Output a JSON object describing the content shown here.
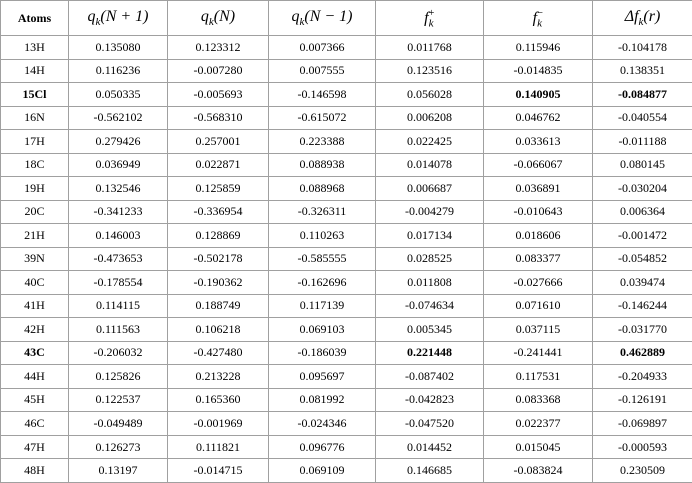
{
  "table": {
    "header": [
      {
        "base": "Atoms"
      },
      {
        "base": "q",
        "sub": "k",
        "rest": "(N + 1)"
      },
      {
        "base": "q",
        "sub": "k",
        "rest": "(N)"
      },
      {
        "base": "q",
        "sub": "k",
        "rest": "(N − 1)"
      },
      {
        "base": "f",
        "sub": "k",
        "sup": "+"
      },
      {
        "base": "f",
        "sub": "k",
        "sup": "−"
      },
      {
        "pre": "Δ",
        "base": "f",
        "sub": "k",
        "rest": "(r)"
      }
    ],
    "rows": [
      {
        "cells": [
          "13H",
          "0.135080",
          "0.123312",
          "0.007366",
          "0.011768",
          "0.115946",
          "-0.104178"
        ],
        "bold": []
      },
      {
        "cells": [
          "14H",
          "0.116236",
          "-0.007280",
          "0.007555",
          "0.123516",
          "-0.014835",
          "0.138351"
        ],
        "bold": []
      },
      {
        "cells": [
          "15Cl",
          "0.050335",
          "-0.005693",
          "-0.146598",
          "0.056028",
          "0.140905",
          "-0.084877"
        ],
        "bold": [
          0,
          5,
          6
        ]
      },
      {
        "cells": [
          "16N",
          "-0.562102",
          "-0.568310",
          "-0.615072",
          "0.006208",
          "0.046762",
          "-0.040554"
        ],
        "bold": []
      },
      {
        "cells": [
          "17H",
          "0.279426",
          "0.257001",
          "0.223388",
          "0.022425",
          "0.033613",
          "-0.011188"
        ],
        "bold": []
      },
      {
        "cells": [
          "18C",
          "0.036949",
          "0.022871",
          "0.088938",
          "0.014078",
          "-0.066067",
          "0.080145"
        ],
        "bold": []
      },
      {
        "cells": [
          "19H",
          "0.132546",
          "0.125859",
          "0.088968",
          "0.006687",
          "0.036891",
          "-0.030204"
        ],
        "bold": []
      },
      {
        "cells": [
          "20C",
          "-0.341233",
          "-0.336954",
          "-0.326311",
          "-0.004279",
          "-0.010643",
          "0.006364"
        ],
        "bold": []
      },
      {
        "cells": [
          "21H",
          "0.146003",
          "0.128869",
          "0.110263",
          "0.017134",
          "0.018606",
          "-0.001472"
        ],
        "bold": []
      },
      {
        "cells": [
          "39N",
          "-0.473653",
          "-0.502178",
          "-0.585555",
          "0.028525",
          "0.083377",
          "-0.054852"
        ],
        "bold": []
      },
      {
        "cells": [
          "40C",
          "-0.178554",
          "-0.190362",
          "-0.162696",
          "0.011808",
          "-0.027666",
          "0.039474"
        ],
        "bold": []
      },
      {
        "cells": [
          "41H",
          "0.114115",
          "0.188749",
          "0.117139",
          "-0.074634",
          "0.071610",
          "-0.146244"
        ],
        "bold": []
      },
      {
        "cells": [
          "42H",
          "0.111563",
          "0.106218",
          "0.069103",
          "0.005345",
          "0.037115",
          "-0.031770"
        ],
        "bold": []
      },
      {
        "cells": [
          "43C",
          "-0.206032",
          "-0.427480",
          "-0.186039",
          "0.221448",
          "-0.241441",
          "0.462889"
        ],
        "bold": [
          0,
          4,
          6
        ]
      },
      {
        "cells": [
          "44H",
          "0.125826",
          "0.213228",
          "0.095697",
          "-0.087402",
          "0.117531",
          "-0.204933"
        ],
        "bold": []
      },
      {
        "cells": [
          "45H",
          "0.122537",
          "0.165360",
          "0.081992",
          "-0.042823",
          "0.083368",
          "-0.126191"
        ],
        "bold": []
      },
      {
        "cells": [
          "46C",
          "-0.049489",
          "-0.001969",
          "-0.024346",
          "-0.047520",
          "0.022377",
          "-0.069897"
        ],
        "bold": []
      },
      {
        "cells": [
          "47H",
          "0.126273",
          "0.111821",
          "0.096776",
          "0.014452",
          "0.015045",
          "-0.000593"
        ],
        "bold": []
      },
      {
        "cells": [
          "48H",
          "0.13197",
          "-0.014715",
          "0.069109",
          "0.146685",
          "-0.083824",
          "0.230509"
        ],
        "bold": []
      }
    ]
  }
}
